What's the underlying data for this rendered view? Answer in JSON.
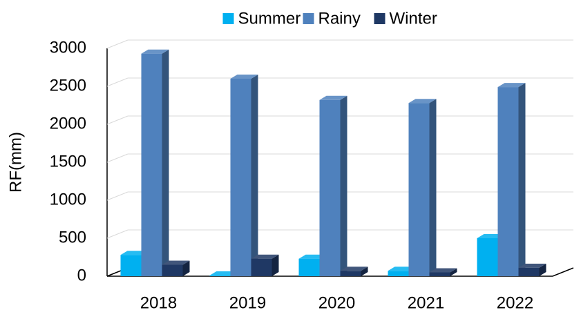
{
  "chart_data": {
    "type": "bar3d",
    "y_label": "RF(mm)",
    "categories": [
      "2018",
      "2019",
      "2020",
      "2021",
      "2022"
    ],
    "series": [
      {
        "name": "Summer",
        "color": "#00b0f0",
        "values": [
          280,
          10,
          230,
          70,
          500
        ]
      },
      {
        "name": "Rainy",
        "color": "#4f81bd",
        "values": [
          2930,
          2600,
          2320,
          2280,
          2490
        ]
      },
      {
        "name": "Winter",
        "color": "#1f3864",
        "values": [
          150,
          230,
          70,
          50,
          110
        ]
      }
    ],
    "ylim": [
      0,
      3000
    ],
    "yticks": [
      0,
      500,
      1000,
      1500,
      2000,
      2500,
      3000
    ],
    "grid": true,
    "legend": "top"
  }
}
